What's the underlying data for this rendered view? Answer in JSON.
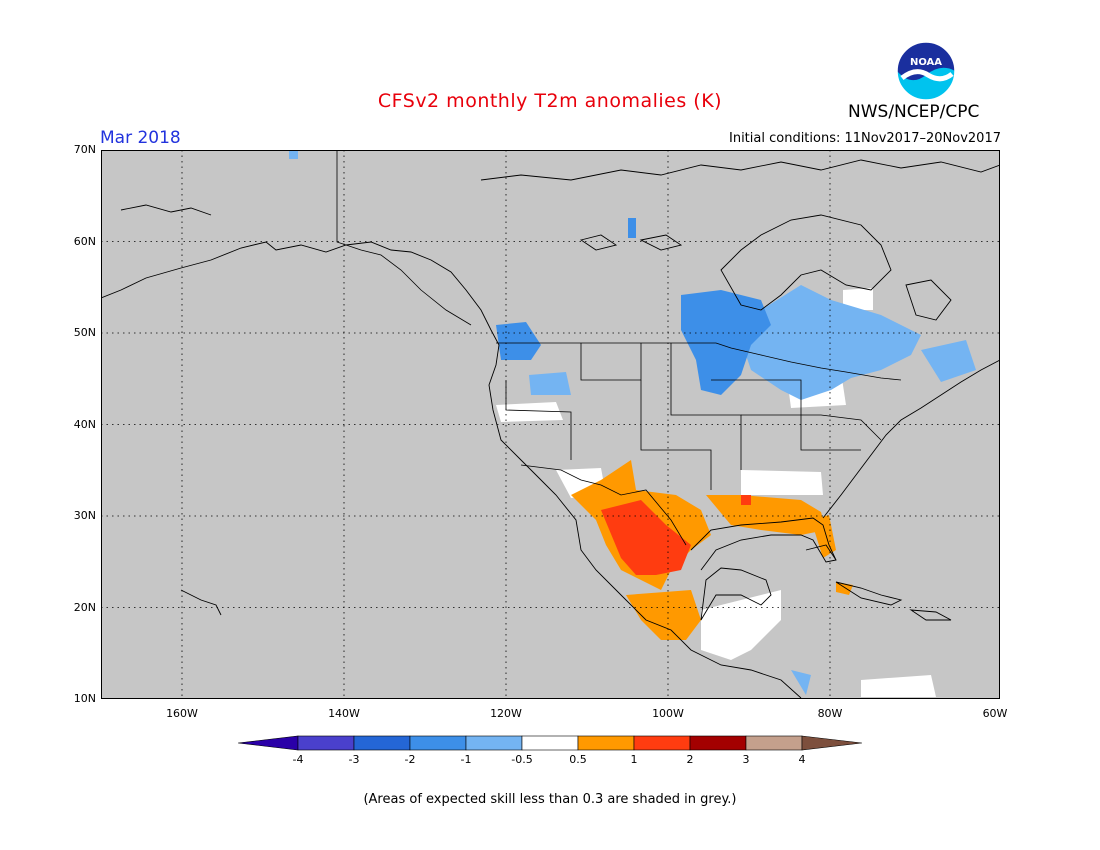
{
  "header": {
    "title": "CFSv2 monthly T2m anomalies (K)",
    "month": "Mar 2018",
    "initial_conditions": "Initial conditions: 11Nov2017–20Nov2017",
    "agency": "NWS/NCEP/CPC",
    "logo_text": "NOAA"
  },
  "map": {
    "region": "North America",
    "background_color": "#c6c6c6",
    "lat_labels": [
      "70N",
      "60N",
      "50N",
      "40N",
      "30N",
      "20N",
      "10N"
    ],
    "lon_labels": [
      "160W",
      "140W",
      "120W",
      "100W",
      "80W",
      "60W"
    ],
    "lat_range": [
      10,
      70
    ],
    "lon_range": [
      -171,
      -60
    ],
    "gridlines": "dotted"
  },
  "colorbar": {
    "labels": [
      "-4",
      "-3",
      "-2",
      "-1",
      "-0.5",
      "0.5",
      "1",
      "2",
      "3",
      "4"
    ],
    "colors": [
      "#2a00a8",
      "#4a40cc",
      "#2466d6",
      "#3d8fe8",
      "#74b4f2",
      "#ffffff",
      "#ff9900",
      "#ff3c10",
      "#a30000",
      "#c4a08c",
      "#7d4f3d"
    ]
  },
  "footnote": "(Areas of expected skill less than 0.3 are shaded in grey.)"
}
